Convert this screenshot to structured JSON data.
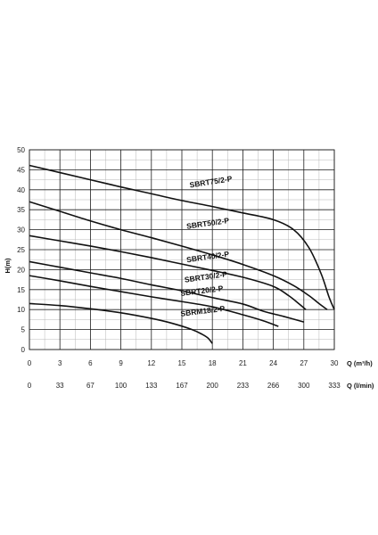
{
  "chart_data": {
    "type": "line",
    "ylabel": "H(m)",
    "xlabel": "Q (m³/h)",
    "xlabel_secondary": "Q (l/min)",
    "xlim": [
      0,
      30
    ],
    "ylim": [
      0,
      50
    ],
    "x_ticks": [
      "0",
      "3",
      "6",
      "9",
      "12",
      "15",
      "18",
      "21",
      "24",
      "27",
      "30"
    ],
    "x_ticks_secondary": [
      "0",
      "33",
      "67",
      "100",
      "133",
      "167",
      "200",
      "233",
      "266",
      "300",
      "333"
    ],
    "y_ticks": [
      "0",
      "5",
      "10",
      "15",
      "20",
      "25",
      "30",
      "35",
      "40",
      "45",
      "50"
    ],
    "grid": true,
    "legend": "none",
    "series": [
      {
        "name": "SBRT75/2-P",
        "points": [
          [
            0,
            46.1
          ],
          [
            3,
            44.3
          ],
          [
            6,
            42.5
          ],
          [
            9,
            40.7
          ],
          [
            12,
            39.0
          ],
          [
            15,
            37.3
          ],
          [
            18,
            35.8
          ],
          [
            21,
            34.2
          ],
          [
            24,
            32.5
          ],
          [
            26,
            30.0
          ],
          [
            27.5,
            25.5
          ],
          [
            28.7,
            19.0
          ],
          [
            29.5,
            13.0
          ],
          [
            30,
            10.0
          ]
        ]
      },
      {
        "name": "SBRT50/2-P",
        "points": [
          [
            0,
            37.0
          ],
          [
            3,
            34.6
          ],
          [
            6,
            32.2
          ],
          [
            9,
            30.0
          ],
          [
            12,
            28.0
          ],
          [
            15,
            25.9
          ],
          [
            18,
            23.7
          ],
          [
            21,
            21.3
          ],
          [
            24,
            18.5
          ],
          [
            26,
            16.0
          ],
          [
            27.5,
            13.5
          ],
          [
            28.5,
            11.5
          ],
          [
            29.3,
            10.0
          ]
        ]
      },
      {
        "name": "SBRT40/2-P",
        "points": [
          [
            0,
            28.5
          ],
          [
            3,
            27.2
          ],
          [
            6,
            25.9
          ],
          [
            9,
            24.5
          ],
          [
            12,
            23.0
          ],
          [
            15,
            21.4
          ],
          [
            18,
            19.8
          ],
          [
            21,
            18.1
          ],
          [
            24,
            15.8
          ],
          [
            25.5,
            13.5
          ],
          [
            26.5,
            11.5
          ],
          [
            27.2,
            10.0
          ]
        ]
      },
      {
        "name": "SBRT30/2-P",
        "points": [
          [
            0,
            22.0
          ],
          [
            3,
            20.6
          ],
          [
            6,
            19.2
          ],
          [
            9,
            17.8
          ],
          [
            12,
            16.2
          ],
          [
            15,
            14.7
          ],
          [
            18,
            13.0
          ],
          [
            21,
            11.4
          ],
          [
            23,
            9.6
          ],
          [
            25,
            8.3
          ],
          [
            27,
            6.9
          ]
        ]
      },
      {
        "name": "SBRT20/2-P",
        "points": [
          [
            0,
            18.5
          ],
          [
            3,
            17.2
          ],
          [
            6,
            15.8
          ],
          [
            9,
            14.5
          ],
          [
            12,
            13.2
          ],
          [
            15,
            12.0
          ],
          [
            18,
            10.7
          ],
          [
            21,
            8.7
          ],
          [
            23,
            7.2
          ],
          [
            24.5,
            5.8
          ]
        ]
      },
      {
        "name": "SBRM18/2-P",
        "points": [
          [
            0,
            11.5
          ],
          [
            3,
            11.0
          ],
          [
            6,
            10.2
          ],
          [
            9,
            9.2
          ],
          [
            12,
            7.8
          ],
          [
            14,
            6.6
          ],
          [
            16,
            5.0
          ],
          [
            17,
            3.8
          ],
          [
            17.6,
            2.8
          ],
          [
            18,
            1.5
          ]
        ]
      }
    ]
  }
}
